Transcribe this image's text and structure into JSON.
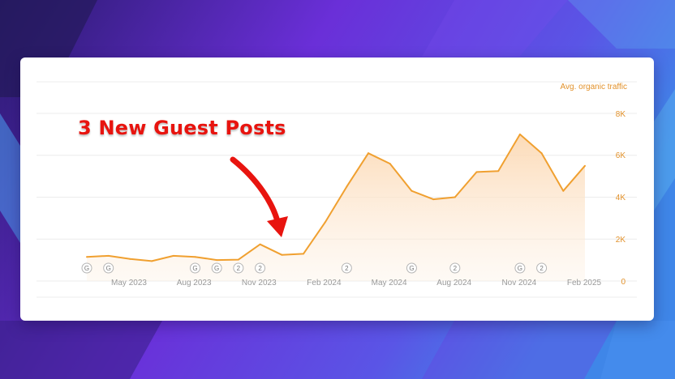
{
  "chart_data": {
    "type": "area",
    "series": [
      {
        "name": "Avg. organic traffic",
        "values": [
          1150,
          1200,
          1050,
          950,
          1200,
          1150,
          1000,
          1020,
          1750,
          1250,
          1300,
          2800,
          4500,
          6100,
          5600,
          4300,
          3900,
          4000,
          5200,
          5250,
          7000,
          6100,
          4300,
          5500
        ]
      }
    ],
    "x_ticks": [
      "May 2023",
      "Aug 2023",
      "Nov 2023",
      "Feb 2024",
      "May 2024",
      "Aug 2024",
      "Nov 2024",
      "Feb 2025"
    ],
    "y_ticks": [
      "8K",
      "6K",
      "4K",
      "2K",
      "0"
    ],
    "ylim": [
      0,
      8000
    ],
    "grid": true,
    "annotation_markers": [
      {
        "label": "G",
        "index": 0
      },
      {
        "label": "G",
        "index": 1
      },
      {
        "label": "G",
        "index": 5
      },
      {
        "label": "G",
        "index": 6
      },
      {
        "label": "2",
        "index": 7
      },
      {
        "label": "2",
        "index": 8
      },
      {
        "label": "2",
        "index": 12
      },
      {
        "label": "G",
        "index": 15
      },
      {
        "label": "2",
        "index": 17
      },
      {
        "label": "G",
        "index": 20
      },
      {
        "label": "2",
        "index": 21
      }
    ],
    "colors": {
      "line": "#f0a030",
      "fill_top": "#fcdcbc",
      "grid": "#ececec",
      "tick": "#999999",
      "accent_text": "#e2912a"
    }
  },
  "callout": {
    "text": "3 New Guest Posts",
    "color": "#e8140f"
  }
}
